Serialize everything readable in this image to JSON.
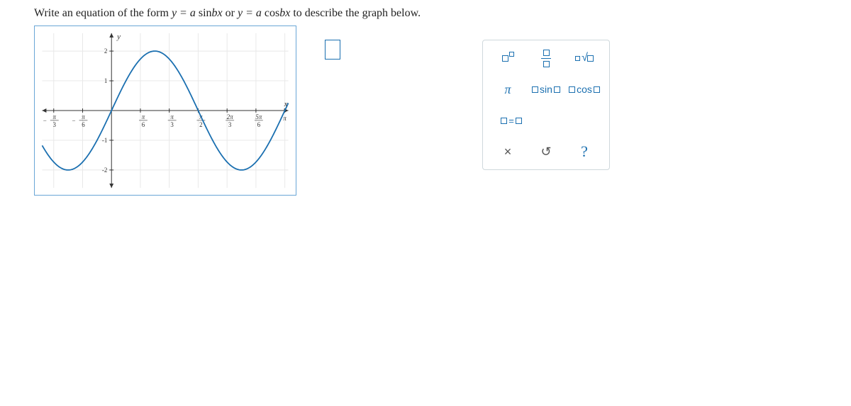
{
  "question": {
    "prefix": "Write an equation of the form ",
    "eq1_lhs": "y = a ",
    "eq1_func": "sin",
    "eq1_arg": "bx",
    "or": " or ",
    "eq2_lhs": "y = a ",
    "eq2_func": "cos",
    "eq2_arg": "bx",
    "suffix": " to describe the graph below."
  },
  "graph": {
    "x_axis_label": "x",
    "y_axis_label": "y",
    "y_min": -2.6,
    "y_max": 2.6,
    "y_ticks": [
      -2,
      -1,
      1,
      2
    ],
    "x_ticks": [
      {
        "num": "π",
        "den": "3",
        "sign": "-"
      },
      {
        "num": "π",
        "den": "6",
        "sign": "-"
      },
      {
        "num": "π",
        "den": "6",
        "sign": ""
      },
      {
        "num": "π",
        "den": "3",
        "sign": ""
      },
      {
        "num": "π",
        "den": "2",
        "sign": ""
      },
      {
        "num": "2π",
        "den": "3",
        "sign": ""
      },
      {
        "num": "5π",
        "den": "6",
        "sign": ""
      },
      {
        "num": "π",
        "den": "",
        "sign": ""
      }
    ],
    "x_tick_frac_values": [
      -0.3333,
      -0.1667,
      0.1667,
      0.3333,
      0.5,
      0.6667,
      0.8333,
      1.0
    ],
    "curve": {
      "amplitude": 2,
      "b": 2,
      "type": "sin"
    },
    "colors": {
      "curve": "#1a6fb0",
      "border": "#6aa6d6",
      "grid": "#e8e8e8",
      "axis": "#333333"
    }
  },
  "answer": {
    "value": ""
  },
  "toolbox": {
    "row1": [
      {
        "name": "power",
        "label": "power"
      },
      {
        "name": "fraction",
        "label": "fraction"
      },
      {
        "name": "sqrt",
        "label": "sqrt"
      }
    ],
    "row2": [
      {
        "name": "pi",
        "label": "π"
      },
      {
        "name": "sin",
        "label": "sin"
      },
      {
        "name": "cos",
        "label": "cos"
      }
    ],
    "row3": [
      {
        "name": "equals",
        "label": "="
      }
    ],
    "row4": [
      {
        "name": "clear",
        "label": "×"
      },
      {
        "name": "reset",
        "label": "↺"
      },
      {
        "name": "help",
        "label": "?"
      }
    ]
  }
}
